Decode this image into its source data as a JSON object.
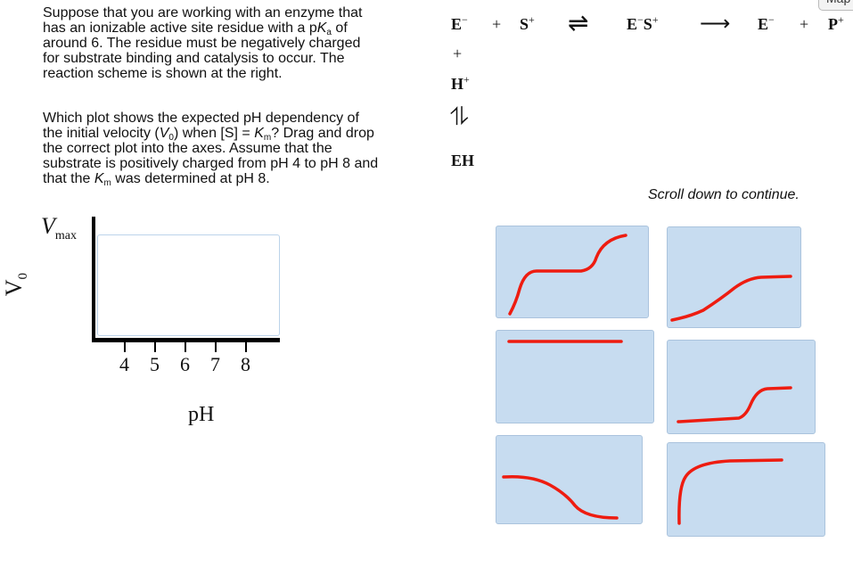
{
  "question": {
    "p1": [
      "Suppose that you are working with an enzyme that",
      "has an ionizable active site residue with a p",
      "K",
      "a",
      " of",
      "around 6. The residue must be negatively charged",
      "for substrate binding and catalysis to occur. The",
      "reaction scheme is shown at the right."
    ],
    "p2": [
      "Which plot shows the expected pH dependency of",
      "the initial velocity (",
      "V",
      "0",
      ") when [S] = ",
      "K",
      "m",
      "? Drag and drop",
      "the correct plot into the axes. Assume that the",
      "substrate is positively charged from pH 4 to pH 8 and",
      "that the ",
      "K",
      "m",
      " was determined at pH 8."
    ]
  },
  "scheme": {
    "e": "E",
    "minus": "−",
    "plus_sign": "+",
    "s": "S",
    "sup_plus": "+",
    "eq": "⇌",
    "arrow": "⟶",
    "p": "P",
    "h": "H",
    "vert_eq": "⥮",
    "eh": "EH"
  },
  "map_button": "Map",
  "scroll_hint": "Scroll down to continue.",
  "axes": {
    "ylabel": "V",
    "ylabel_sub": "0",
    "vmax": "V",
    "vmax_sub": "max",
    "xlabel": "pH",
    "ticks": [
      "4",
      "5",
      "6",
      "7",
      "8"
    ]
  },
  "plot_options": [
    "two-step-sigmoid",
    "gradual-sigmoid-rise",
    "flat-line",
    "late-sharp-rise",
    "decreasing-sigmoid",
    "rapid-rise-plateau"
  ],
  "colors": {
    "card": "#c7dcf0",
    "curve": "#ee1c10"
  }
}
